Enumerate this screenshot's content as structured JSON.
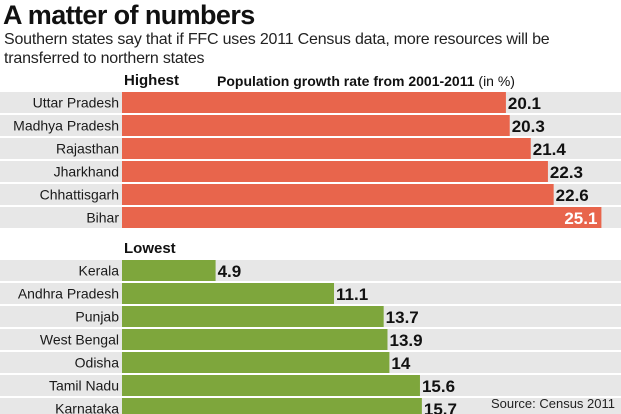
{
  "title": "A matter of numbers",
  "subtitle": "Southern states say that if FFC uses 2011 Census data, more resources will be transferred to northern states",
  "metric_label": "Population growth rate from 2001-2011",
  "metric_unit": "(in %)",
  "source": "Source: Census 2011",
  "colors": {
    "highest": "#e8654c",
    "lowest": "#7ea63c",
    "row_background": "#e7e7e7"
  },
  "chart_data": [
    {
      "type": "bar",
      "orientation": "horizontal",
      "group_label": "Highest",
      "color": "#e8654c",
      "categories": [
        "Uttar Pradesh",
        "Madhya Pradesh",
        "Rajasthan",
        "Jharkhand",
        "Chhattisgarh",
        "Bihar"
      ],
      "values": [
        20.1,
        20.3,
        21.4,
        22.3,
        22.6,
        25.1
      ],
      "value_labels": [
        "20.1",
        "20.3",
        "21.4",
        "22.3",
        "22.6",
        "25.1"
      ],
      "xlim": [
        0,
        25.5
      ]
    },
    {
      "type": "bar",
      "orientation": "horizontal",
      "group_label": "Lowest",
      "color": "#7ea63c",
      "categories": [
        "Kerala",
        "Andhra Pradesh",
        "Punjab",
        "West Bengal",
        "Odisha",
        "Tamil Nadu",
        "Karnataka"
      ],
      "values": [
        4.9,
        11.1,
        13.7,
        13.9,
        14,
        15.6,
        15.7
      ],
      "value_labels": [
        "4.9",
        "11.1",
        "13.7",
        "13.9",
        "14",
        "15.6",
        "15.7"
      ],
      "xlim": [
        0,
        25.5
      ]
    }
  ]
}
